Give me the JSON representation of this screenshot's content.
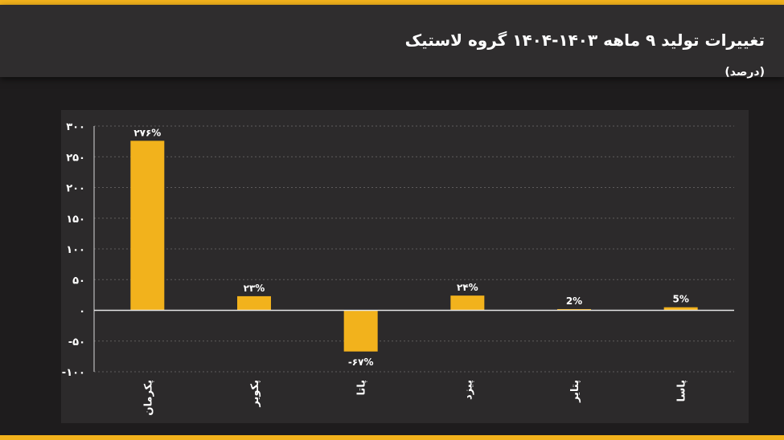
{
  "header": {
    "title": "تغییرات تولید ۹ ماهه ۱۴۰۳-۱۴۰۴ گروه لاستیک",
    "subtitle": "(درصد)"
  },
  "colors": {
    "accent": "#f2b21c",
    "background": "#1e1c1d",
    "panel": "#2c2a2b",
    "text": "#ffffff"
  },
  "chart_data": {
    "type": "bar",
    "title": "تغییرات تولید ۹ ماهه ۱۴۰۳-۱۴۰۴ گروه لاستیک",
    "ylabel": "(درصد)",
    "xlabel": "",
    "categories": [
      "پکرمان",
      "پکویر",
      "پاتا",
      "پیزد",
      "پتایر",
      "پاسا"
    ],
    "values": [
      276,
      23,
      -67,
      24,
      2,
      5
    ],
    "data_labels": [
      "۲۷۶%",
      "۲۳%",
      "-۶۷%",
      "۲۴%",
      "2%",
      "5%"
    ],
    "ylim": [
      -100,
      300
    ],
    "yticks": [
      300,
      250,
      200,
      150,
      100,
      50,
      0,
      -50,
      -100
    ],
    "ytick_labels": [
      "۳۰۰",
      "۲۵۰",
      "۲۰۰",
      "۱۵۰",
      "۱۰۰",
      "۵۰",
      "۰",
      "-۵۰",
      "-۱۰۰"
    ],
    "grid": true,
    "legend": "none"
  }
}
